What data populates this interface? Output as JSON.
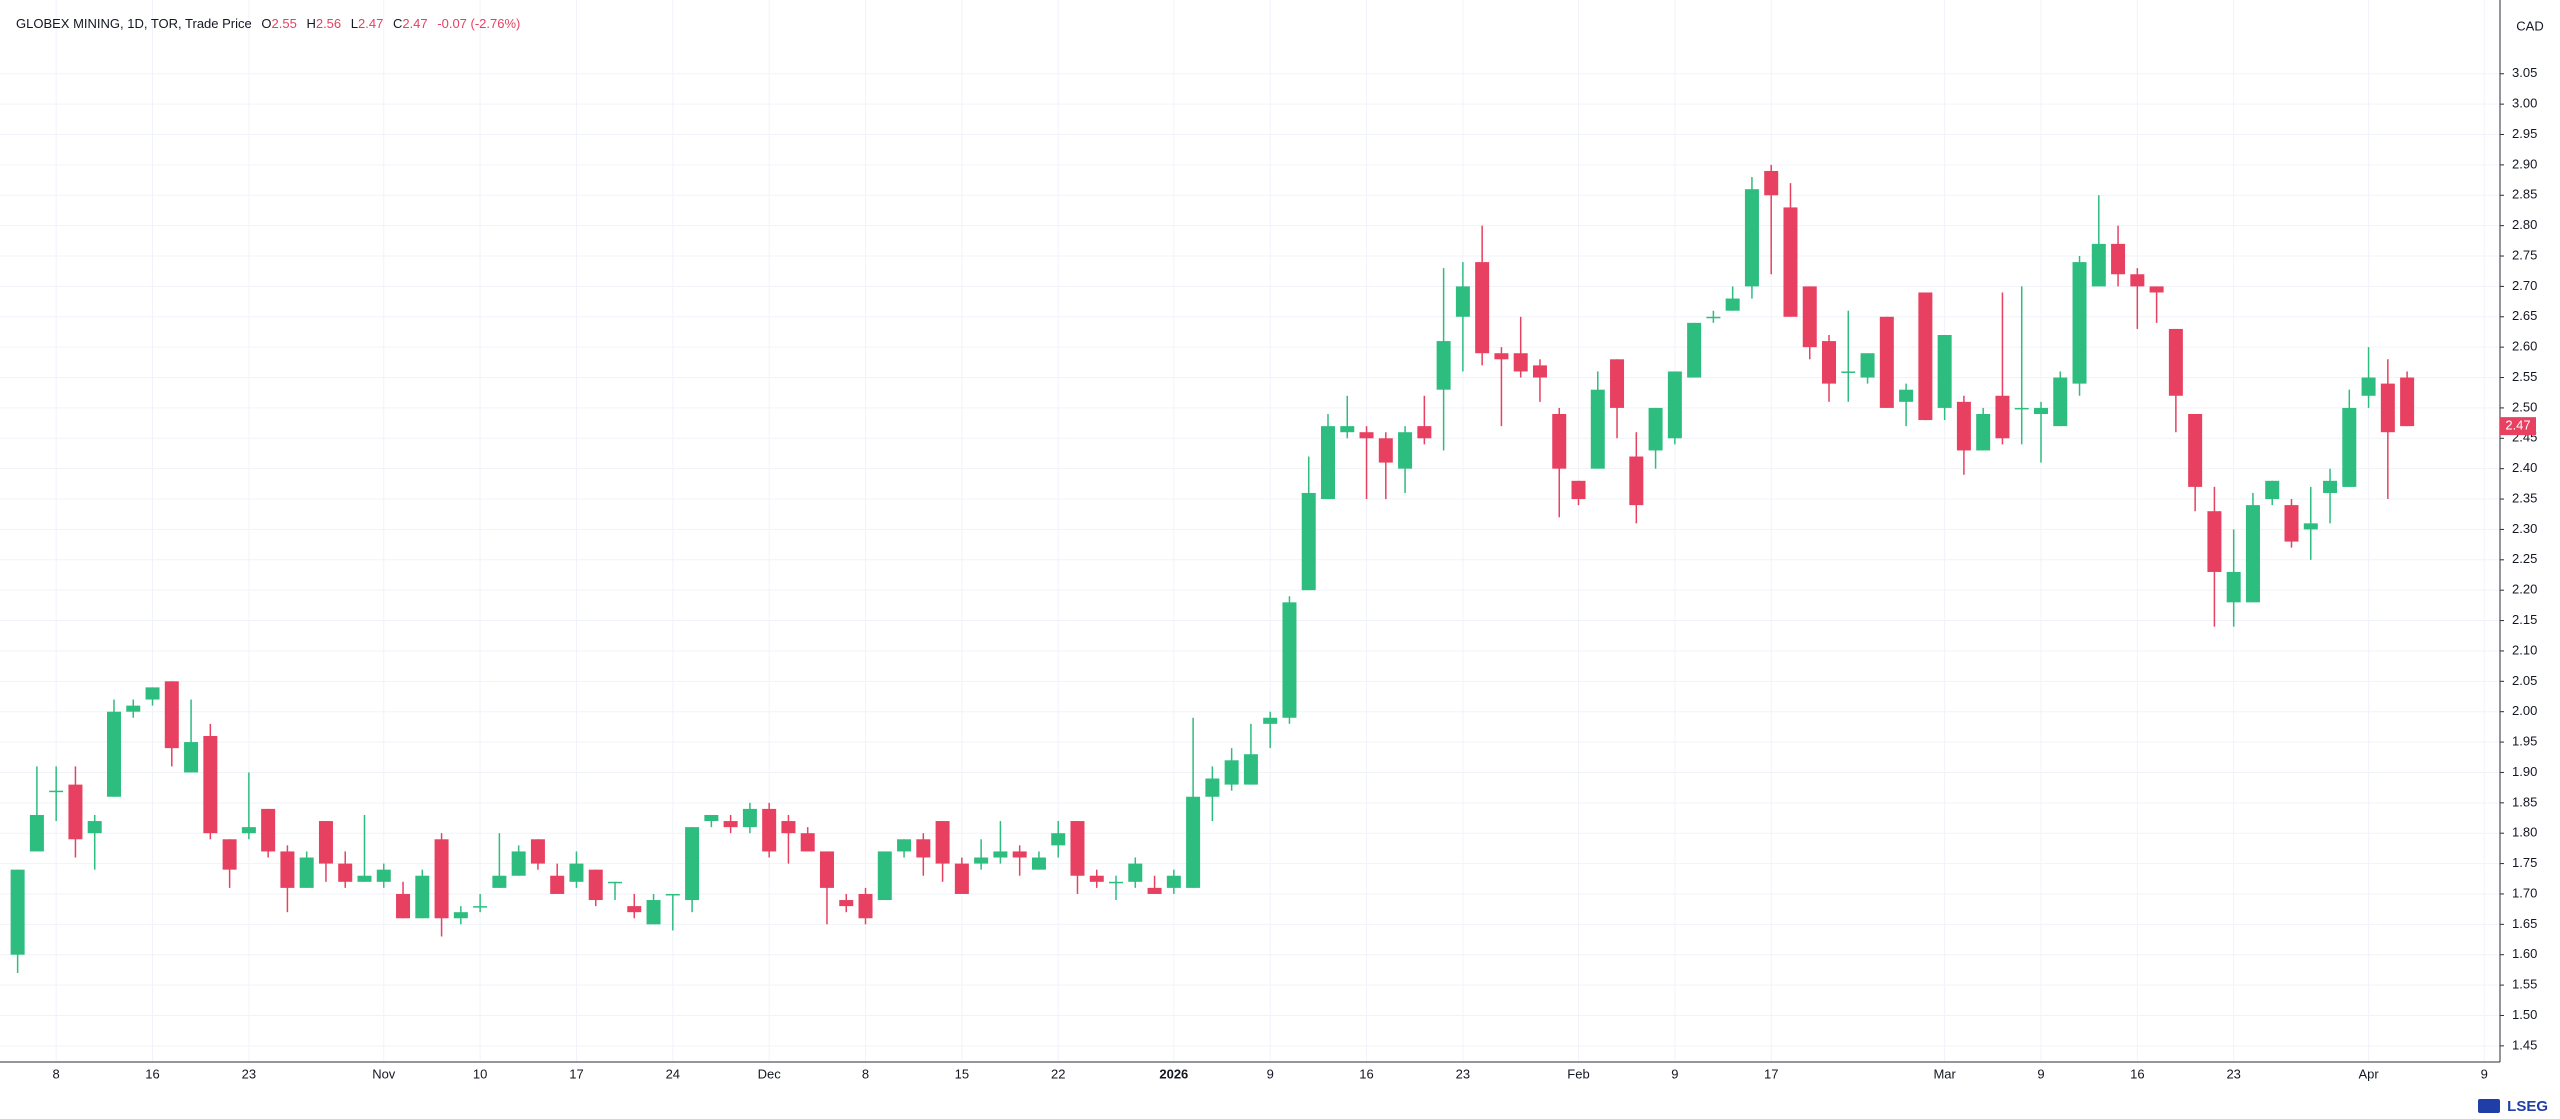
{
  "chart_data": {
    "type": "candlestick",
    "title": "GLOBEX MINING, 1D, TOR, Trade Price",
    "ohlc_labels": [
      "O",
      "H",
      "L",
      "C"
    ],
    "change": "-0.07 (-2.76%)",
    "currency": "CAD",
    "logo": "LSEG",
    "up_color": "#2dbd7f",
    "down_color": "#e84060",
    "categories": [
      null,
      null,
      "8",
      null,
      null,
      null,
      null,
      "16",
      null,
      null,
      null,
      null,
      "23",
      null,
      null,
      null,
      null,
      null,
      null,
      "Nov",
      null,
      null,
      null,
      null,
      "10",
      null,
      null,
      null,
      null,
      "17",
      null,
      null,
      null,
      null,
      "24",
      null,
      null,
      null,
      null,
      "Dec",
      null,
      null,
      null,
      null,
      "8",
      null,
      null,
      null,
      null,
      "15",
      null,
      null,
      null,
      null,
      "22",
      null,
      null,
      null,
      null,
      null,
      "2026",
      null,
      null,
      null,
      null,
      "9",
      null,
      null,
      null,
      null,
      "16",
      null,
      null,
      null,
      null,
      "23",
      null,
      null,
      null,
      null,
      null,
      "Feb",
      null,
      null,
      null,
      null,
      "9",
      null,
      null,
      null,
      null,
      "17",
      null,
      null,
      null,
      null,
      null,
      null,
      null,
      null,
      "Mar",
      null,
      null,
      null,
      null,
      "9",
      null,
      null,
      null,
      null,
      "16",
      null,
      null,
      null,
      null,
      "23",
      null,
      null,
      null,
      null,
      null,
      null,
      "Apr",
      null,
      null,
      null,
      null,
      null,
      "9"
    ],
    "open": [
      1.6,
      1.77,
      1.87,
      1.88,
      1.8,
      1.86,
      2.0,
      2.02,
      2.05,
      1.9,
      1.96,
      1.79,
      1.8,
      1.84,
      1.77,
      1.71,
      1.82,
      1.75,
      1.72,
      1.72,
      1.7,
      1.66,
      1.79,
      1.66,
      1.68,
      1.71,
      1.73,
      1.79,
      1.73,
      1.72,
      1.74,
      1.72,
      1.68,
      1.65,
      1.7,
      1.69,
      1.82,
      1.82,
      1.81,
      1.84,
      1.82,
      1.8,
      1.77,
      1.69,
      1.7,
      1.69,
      1.77,
      1.79,
      1.82,
      1.75,
      1.75,
      1.76,
      1.77,
      1.74,
      1.78,
      1.82,
      1.73,
      1.72,
      1.72,
      1.71,
      1.71,
      1.71,
      1.86,
      1.88,
      1.88,
      1.98,
      1.99,
      2.2,
      2.35,
      2.46,
      2.46,
      2.45,
      2.4,
      2.47,
      2.53,
      2.65,
      2.74,
      2.59,
      2.59,
      2.57,
      2.49,
      2.38,
      2.4,
      2.58,
      2.42,
      2.43,
      2.45,
      2.55,
      2.65,
      2.66,
      2.7,
      2.89,
      2.83,
      2.7,
      2.61,
      2.56,
      2.55,
      2.65,
      2.51,
      2.69,
      2.5,
      2.51,
      2.43,
      2.52,
      2.5,
      2.49,
      2.47,
      2.54,
      2.7,
      2.77,
      2.72,
      2.7,
      2.63,
      2.49,
      2.33,
      2.18,
      2.18,
      2.35,
      2.34,
      2.3,
      2.36,
      2.37,
      2.52,
      2.54,
      2.55,
      null,
      null,
      null,
      null
    ],
    "high": [
      1.74,
      1.91,
      1.91,
      1.91,
      1.83,
      2.02,
      2.02,
      2.04,
      2.05,
      2.02,
      1.98,
      1.79,
      1.9,
      1.84,
      1.78,
      1.77,
      1.82,
      1.77,
      1.83,
      1.75,
      1.72,
      1.74,
      1.8,
      1.68,
      1.7,
      1.8,
      1.78,
      1.79,
      1.75,
      1.77,
      1.74,
      1.72,
      1.7,
      1.7,
      1.7,
      1.81,
      1.83,
      1.83,
      1.85,
      1.85,
      1.83,
      1.81,
      1.77,
      1.7,
      1.71,
      1.77,
      1.79,
      1.8,
      1.82,
      1.76,
      1.79,
      1.82,
      1.78,
      1.77,
      1.82,
      1.82,
      1.74,
      1.73,
      1.76,
      1.73,
      1.74,
      1.99,
      1.91,
      1.94,
      1.98,
      2.0,
      2.19,
      2.42,
      2.49,
      2.52,
      2.47,
      2.46,
      2.47,
      2.52,
      2.73,
      2.74,
      2.8,
      2.6,
      2.65,
      2.58,
      2.5,
      2.38,
      2.56,
      2.58,
      2.46,
      2.5,
      2.56,
      2.64,
      2.66,
      2.7,
      2.88,
      2.9,
      2.87,
      2.7,
      2.62,
      2.66,
      2.59,
      2.65,
      2.54,
      2.69,
      2.62,
      2.52,
      2.5,
      2.69,
      2.7,
      2.51,
      2.56,
      2.75,
      2.85,
      2.8,
      2.73,
      2.7,
      2.63,
      2.49,
      2.37,
      2.3,
      2.36,
      2.38,
      2.35,
      2.37,
      2.4,
      2.53,
      2.6,
      2.58,
      2.56,
      null,
      null,
      null,
      null
    ],
    "low": [
      1.57,
      1.77,
      1.82,
      1.76,
      1.74,
      1.86,
      1.99,
      2.01,
      1.91,
      1.9,
      1.79,
      1.71,
      1.79,
      1.76,
      1.67,
      1.71,
      1.72,
      1.71,
      1.72,
      1.71,
      1.66,
      1.66,
      1.63,
      1.65,
      1.67,
      1.71,
      1.73,
      1.74,
      1.7,
      1.71,
      1.68,
      1.69,
      1.66,
      1.65,
      1.64,
      1.67,
      1.81,
      1.8,
      1.8,
      1.76,
      1.75,
      1.77,
      1.65,
      1.67,
      1.65,
      1.69,
      1.76,
      1.73,
      1.72,
      1.7,
      1.74,
      1.75,
      1.73,
      1.74,
      1.76,
      1.7,
      1.71,
      1.69,
      1.71,
      1.7,
      1.7,
      1.71,
      1.82,
      1.87,
      1.88,
      1.94,
      1.98,
      2.2,
      2.35,
      2.45,
      2.35,
      2.35,
      2.36,
      2.44,
      2.43,
      2.56,
      2.57,
      2.47,
      2.55,
      2.51,
      2.32,
      2.34,
      2.4,
      2.45,
      2.31,
      2.4,
      2.44,
      2.55,
      2.64,
      2.66,
      2.68,
      2.72,
      2.65,
      2.58,
      2.51,
      2.51,
      2.54,
      2.5,
      2.47,
      2.48,
      2.48,
      2.39,
      2.43,
      2.44,
      2.44,
      2.41,
      2.47,
      2.52,
      2.7,
      2.7,
      2.63,
      2.64,
      2.46,
      2.33,
      2.14,
      2.14,
      2.18,
      2.34,
      2.27,
      2.25,
      2.31,
      2.37,
      2.5,
      2.35,
      2.47,
      null,
      null,
      null,
      null
    ],
    "close": [
      1.74,
      1.83,
      1.87,
      1.79,
      1.82,
      2.0,
      2.01,
      2.04,
      1.94,
      1.95,
      1.8,
      1.74,
      1.81,
      1.77,
      1.71,
      1.76,
      1.75,
      1.72,
      1.73,
      1.74,
      1.66,
      1.73,
      1.66,
      1.67,
      1.68,
      1.73,
      1.77,
      1.75,
      1.7,
      1.75,
      1.69,
      1.72,
      1.67,
      1.69,
      1.7,
      1.81,
      1.83,
      1.81,
      1.84,
      1.77,
      1.8,
      1.77,
      1.71,
      1.68,
      1.66,
      1.77,
      1.79,
      1.76,
      1.75,
      1.7,
      1.76,
      1.77,
      1.76,
      1.76,
      1.8,
      1.73,
      1.72,
      1.72,
      1.75,
      1.7,
      1.73,
      1.86,
      1.89,
      1.92,
      1.93,
      1.99,
      2.18,
      2.36,
      2.47,
      2.47,
      2.45,
      2.41,
      2.46,
      2.45,
      2.61,
      2.7,
      2.59,
      2.58,
      2.56,
      2.55,
      2.4,
      2.35,
      2.53,
      2.5,
      2.34,
      2.5,
      2.56,
      2.64,
      2.65,
      2.68,
      2.86,
      2.85,
      2.65,
      2.6,
      2.54,
      2.56,
      2.59,
      2.5,
      2.53,
      2.48,
      2.62,
      2.43,
      2.49,
      2.45,
      2.5,
      2.5,
      2.55,
      2.74,
      2.77,
      2.72,
      2.7,
      2.69,
      2.52,
      2.37,
      2.23,
      2.23,
      2.34,
      2.38,
      2.28,
      2.31,
      2.38,
      2.5,
      2.55,
      2.46,
      2.47,
      null,
      null,
      null,
      null
    ],
    "ylim": [
      1.43,
      3.15
    ],
    "yticks": [
      1.45,
      {
        "value": 1.5,
        "label": "1.50"
      },
      1.55,
      {
        "value": 1.6,
        "label": "1.60"
      },
      1.65,
      {
        "value": 1.7,
        "label": "1.70"
      },
      1.75,
      {
        "value": 1.8,
        "label": "1.80"
      },
      1.85,
      {
        "value": 1.9,
        "label": "1.90"
      },
      1.95,
      {
        "value": 2.0,
        "label": "2.00"
      },
      2.05,
      {
        "value": 2.1,
        "label": "2.10"
      },
      2.15,
      {
        "value": 2.2,
        "label": "2.20"
      },
      2.25,
      {
        "value": 2.3,
        "label": "2.30"
      },
      2.35,
      {
        "value": 2.4,
        "label": "2.40"
      },
      2.45,
      {
        "value": 2.5,
        "label": "2.50"
      },
      2.55,
      {
        "value": 2.6,
        "label": "2.60"
      },
      2.65,
      {
        "value": 2.7,
        "label": "2.70"
      },
      2.75,
      {
        "value": 2.8,
        "label": "2.80"
      },
      2.85,
      {
        "value": 2.9,
        "label": "2.90"
      },
      2.95,
      {
        "value": 3.0,
        "label": "3.00"
      },
      3.05
    ],
    "grid": true
  }
}
